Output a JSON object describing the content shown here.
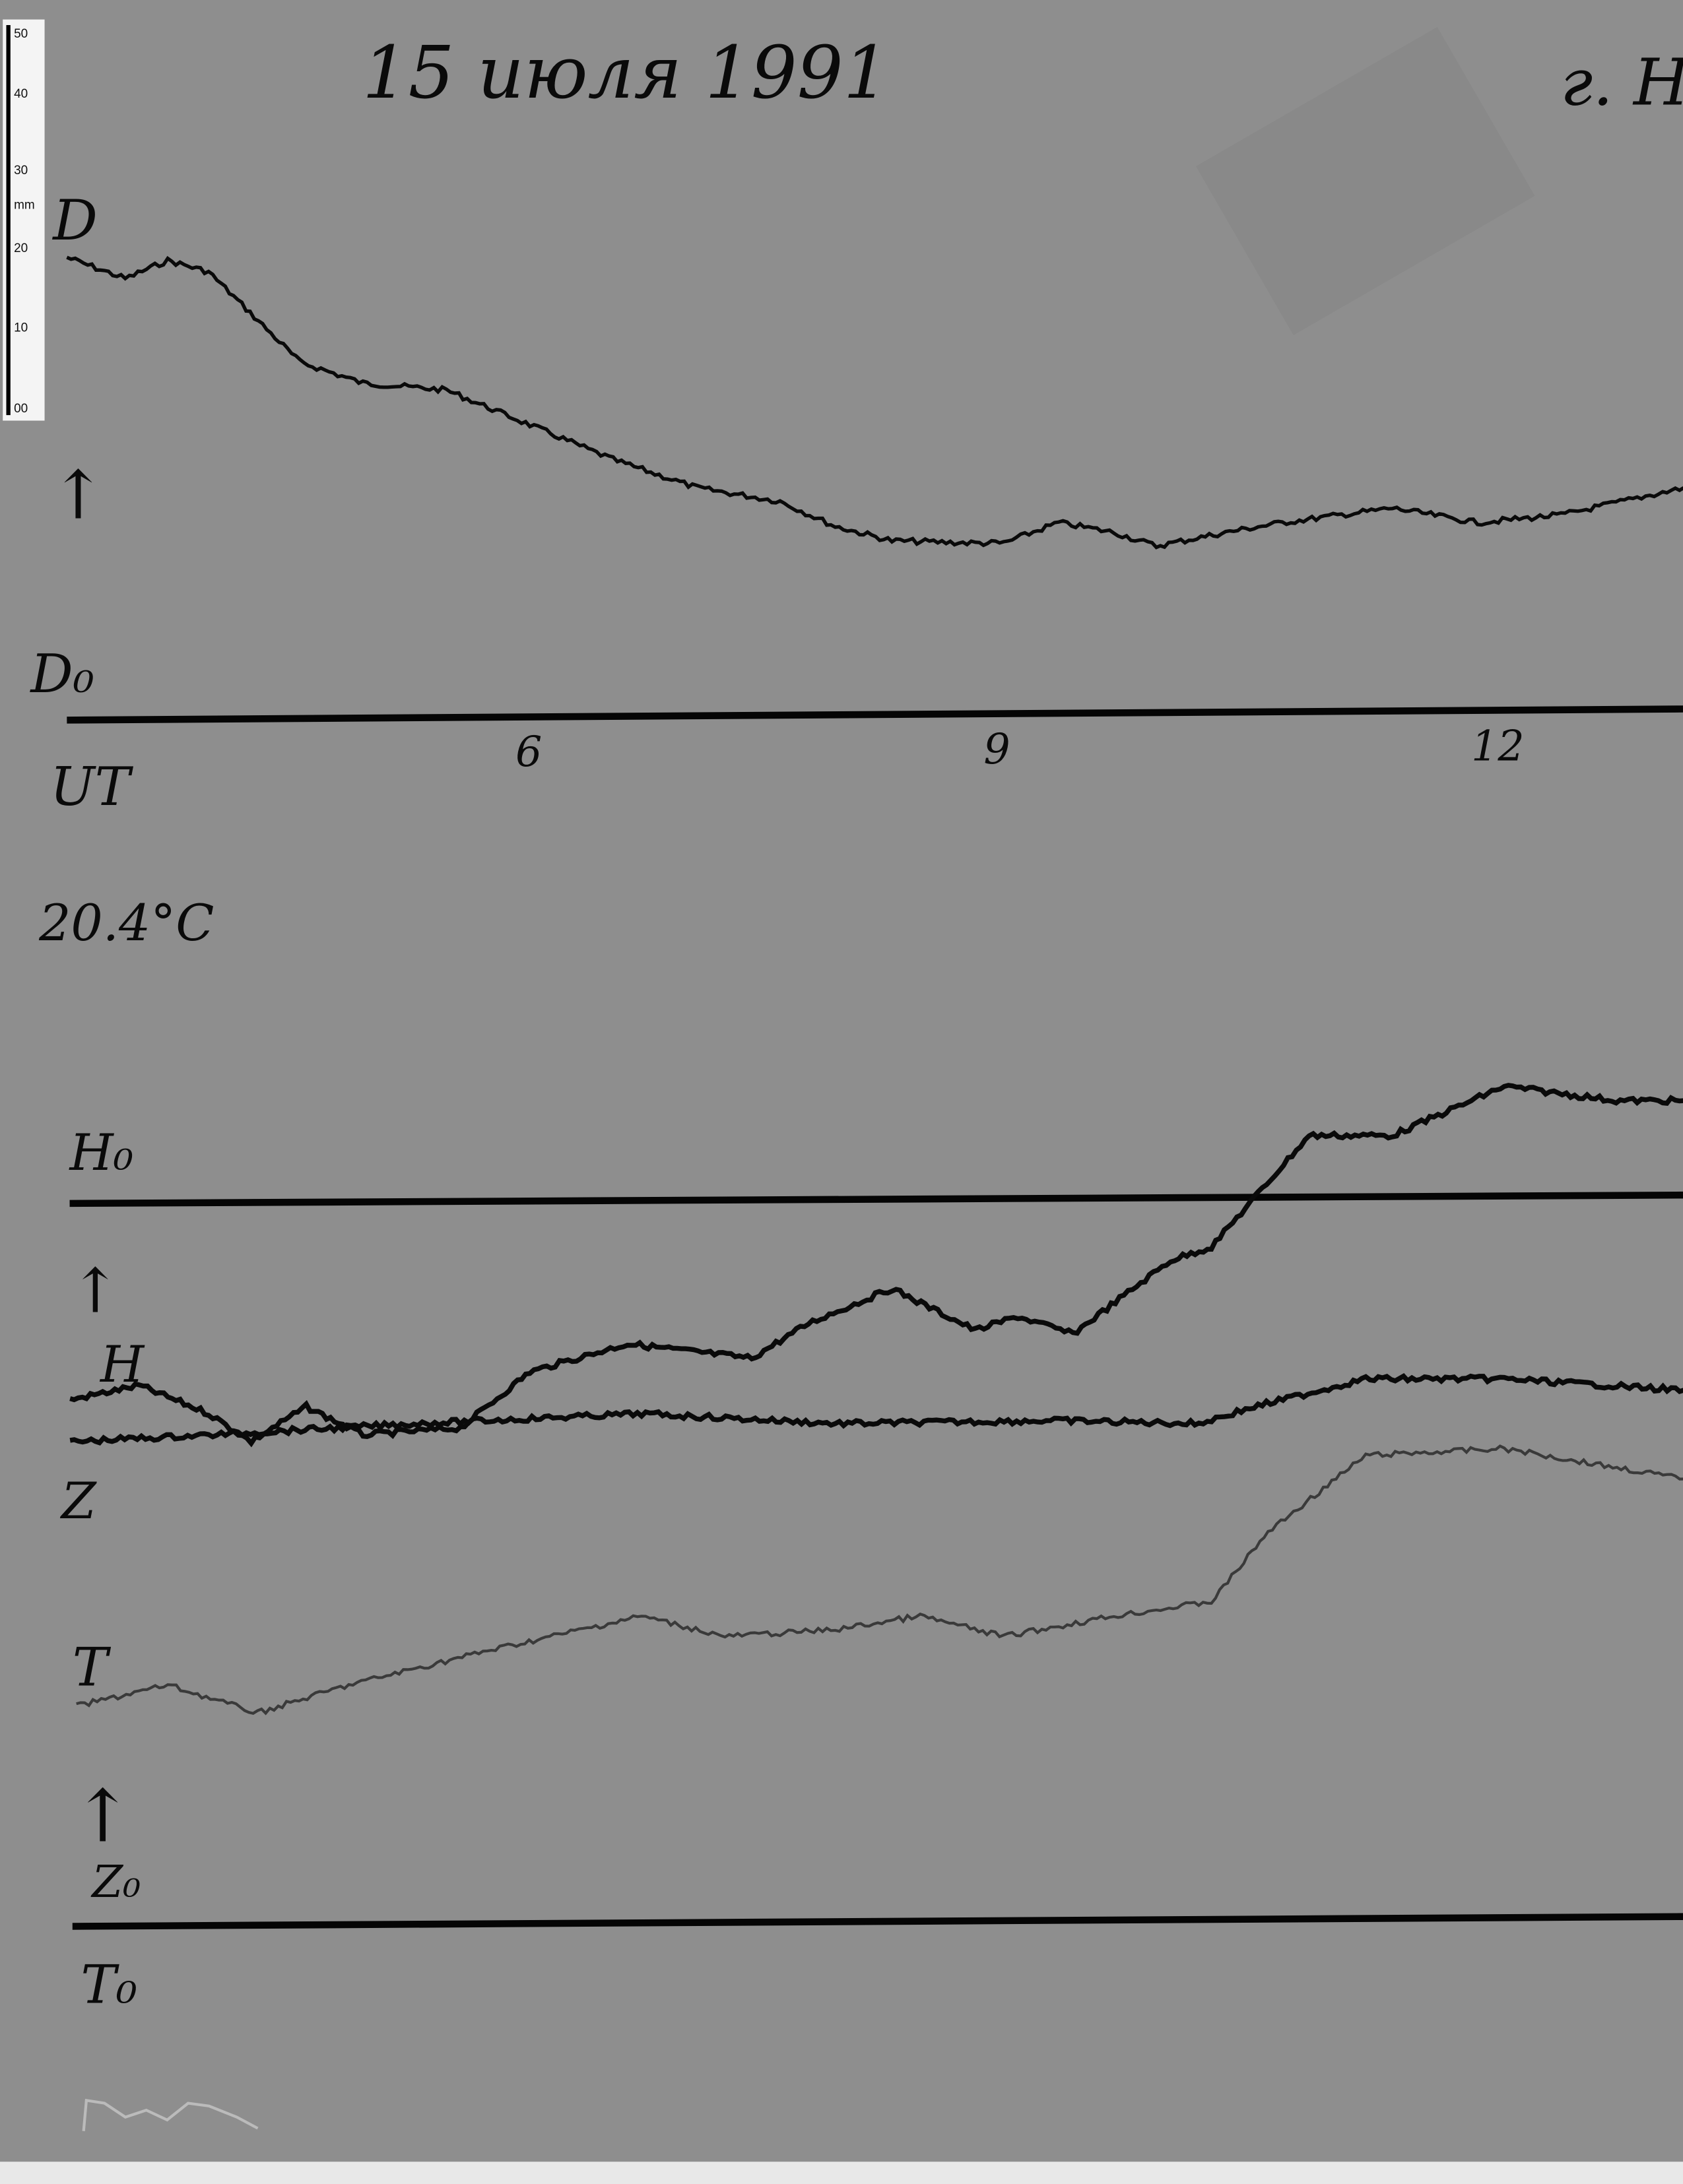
{
  "header": {
    "date": "15 июля 1991",
    "station": "г. Н"
  },
  "ruler": {
    "unit": "mm",
    "ticks": [
      "50",
      "40",
      "30",
      "20",
      "10",
      "00"
    ]
  },
  "labels": {
    "d": "D",
    "d0": "D₀",
    "ut": "UT",
    "temp": "20.4°C",
    "h0": "H₀",
    "h": "H",
    "z": "Z",
    "t": "T",
    "z0": "Z₀",
    "t0": "T₀"
  },
  "colors": {
    "paper": "#8e8e8e",
    "ink": "#0a0a0a",
    "t_trace": "#3a3a3a"
  },
  "chart_data": {
    "type": "line",
    "title": "15 июля 1991",
    "xlabel": "UT",
    "x_ticks": [
      "6",
      "9",
      "12"
    ],
    "x_unit": "UT hours",
    "y_unit": "mm deflection from baseline",
    "xlim": [
      3,
      13.4
    ],
    "grid": false,
    "series": [
      {
        "name": "D",
        "baseline": "D₀",
        "x": [
          3.08,
          3.45,
          3.72,
          3.98,
          4.56,
          4.96,
          5.49,
          6.02,
          6.55,
          7.08,
          7.61,
          7.96,
          8.32,
          8.85,
          9.03,
          9.38,
          9.73,
          10.0,
          10.44,
          10.8,
          11.5,
          12.04,
          12.57,
          13.35
        ],
        "y": [
          60.7,
          57.9,
          60.3,
          58.8,
          46.9,
          44.1,
          43.2,
          38.6,
          34.0,
          30.3,
          28.5,
          25.2,
          23.3,
          23.0,
          23.0,
          25.7,
          24.4,
          22.6,
          24.4,
          25.7,
          27.6,
          25.7,
          26.7,
          30.3
        ]
      },
      {
        "name": "H",
        "baseline": "H₀",
        "x": [
          3.1,
          3.54,
          3.98,
          4.25,
          4.6,
          4.96,
          5.58,
          6.02,
          6.64,
          7.43,
          7.79,
          8.32,
          8.85,
          9.12,
          9.47,
          10.09,
          10.35,
          10.97,
          11.5,
          12.21,
          12.92,
          13.35
        ],
        "y": [
          -26.3,
          -24.4,
          -28.1,
          -31.8,
          -27.2,
          -30.9,
          -30.0,
          -22.6,
          -18.9,
          -20.8,
          -16.2,
          -11.6,
          -17.1,
          -15.3,
          -17.6,
          -7.9,
          -6.1,
          8.6,
          8.6,
          15.1,
          13.2,
          13.2
        ]
      },
      {
        "name": "Z",
        "baseline": "Z₀",
        "x": [
          3.1,
          3.98,
          5.31,
          6.73,
          7.96,
          9.38,
          10.27,
          10.62,
          11.33,
          12.21,
          13.35
        ],
        "y": [
          63.4,
          64.3,
          65.8,
          67.1,
          65.8,
          66.2,
          65.8,
          68.0,
          71.7,
          71.7,
          70.2
        ]
      },
      {
        "name": "T",
        "baseline": "T₀",
        "x": [
          3.14,
          3.72,
          4.29,
          4.87,
          5.75,
          6.73,
          7.26,
          7.96,
          8.5,
          9.03,
          9.73,
          10.35,
          10.71,
          11.33,
          12.21,
          13.35
        ],
        "y": [
          28.5,
          31.3,
          27.6,
          31.3,
          35.8,
          40.4,
          37.7,
          38.6,
          40.4,
          37.7,
          40.4,
          42.3,
          51.5,
          61.6,
          62.5,
          58.5
        ]
      }
    ]
  }
}
